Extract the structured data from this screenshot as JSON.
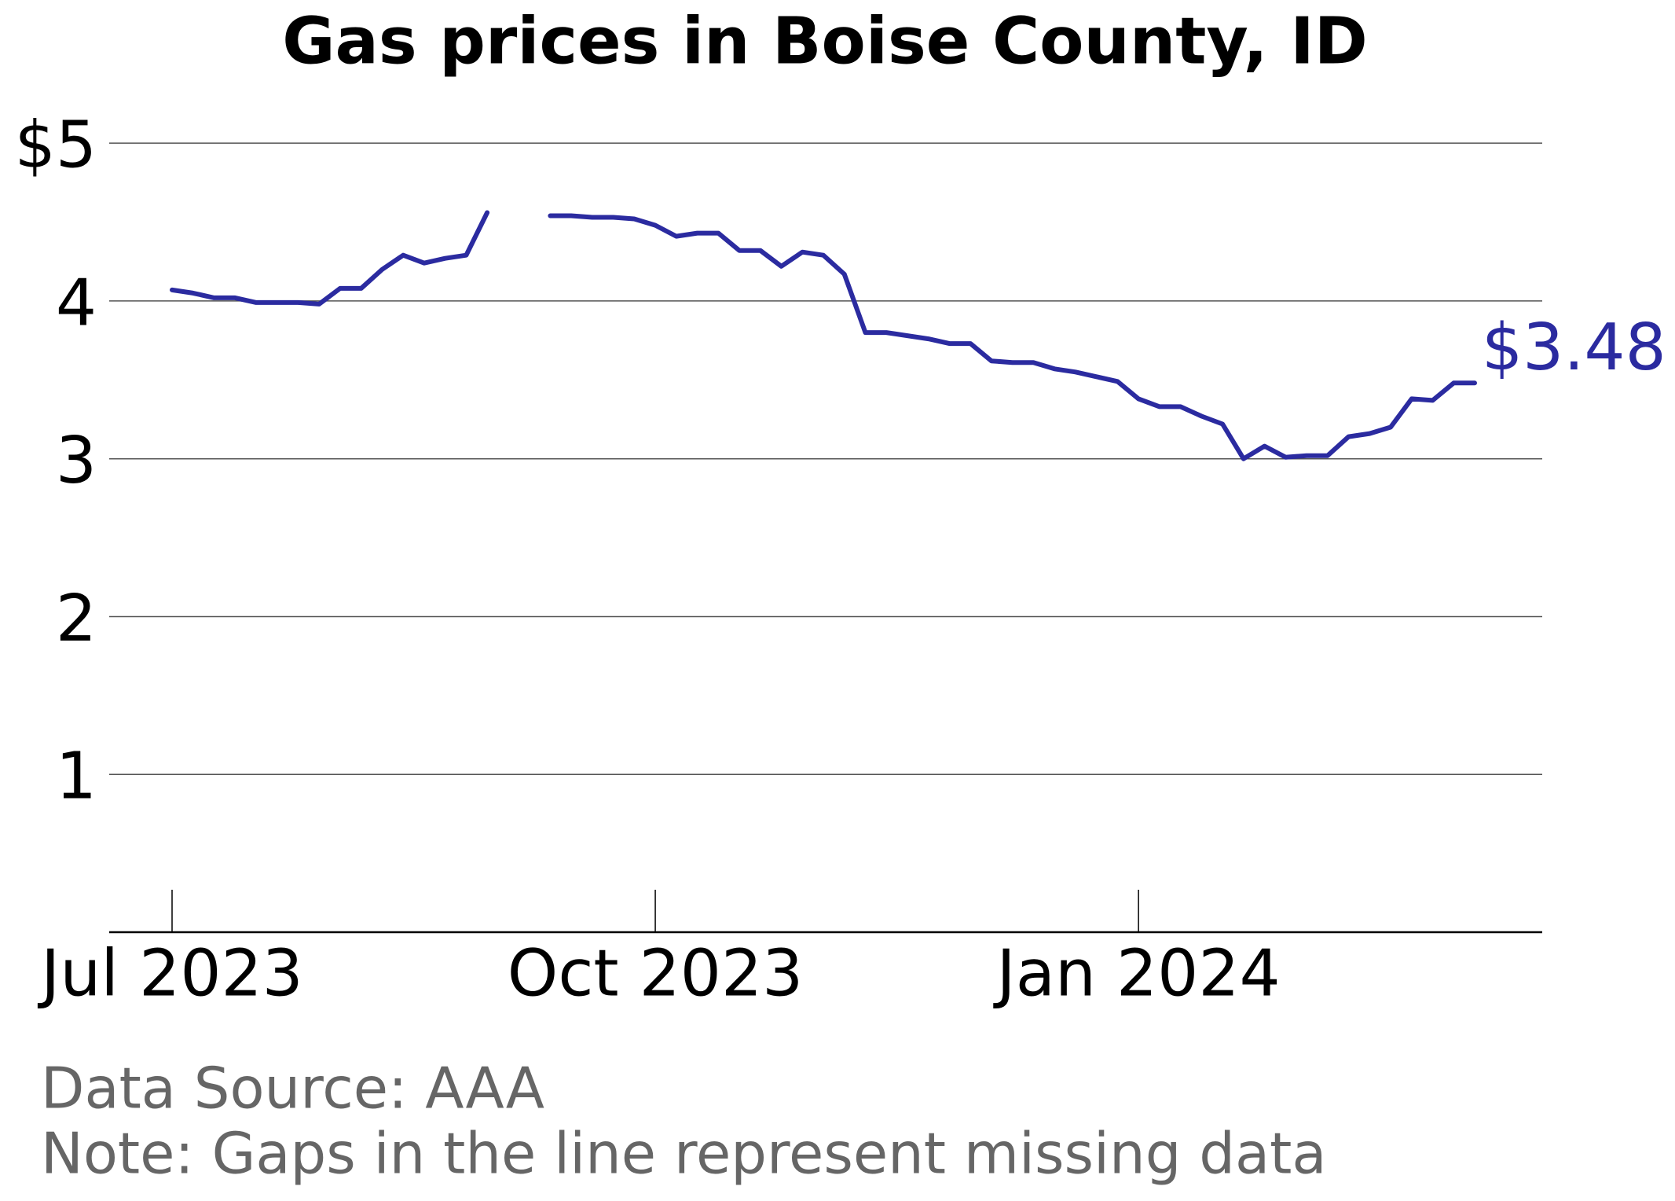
{
  "chart_data": {
    "type": "line",
    "title": "Gas prices in Boise County, ID",
    "categories": [
      "Jul 2023",
      null,
      null,
      null,
      null,
      null,
      null,
      null,
      null,
      null,
      null,
      null,
      null,
      null,
      null,
      null,
      null,
      null,
      null,
      null,
      null,
      null,
      null,
      "Oct 2023",
      null,
      null,
      null,
      null,
      null,
      null,
      null,
      null,
      null,
      null,
      null,
      null,
      null,
      null,
      null,
      null,
      null,
      null,
      null,
      null,
      null,
      null,
      "Jan 2024",
      null,
      null,
      null,
      null,
      null,
      null,
      null,
      null,
      null,
      null,
      null,
      null,
      null,
      null,
      null,
      null
    ],
    "values": [
      4.07,
      4.05,
      4.02,
      4.02,
      3.99,
      3.99,
      3.99,
      3.98,
      4.08,
      4.08,
      4.2,
      4.29,
      4.24,
      4.27,
      4.29,
      4.56,
      null,
      null,
      4.54,
      4.54,
      4.53,
      4.53,
      4.52,
      4.48,
      4.41,
      4.43,
      4.43,
      4.32,
      4.32,
      4.22,
      4.31,
      4.29,
      4.17,
      3.8,
      3.8,
      3.78,
      3.76,
      3.73,
      3.73,
      3.62,
      3.61,
      3.61,
      3.57,
      3.55,
      3.52,
      3.49,
      3.38,
      3.33,
      3.33,
      3.27,
      3.22,
      3.0,
      3.08,
      3.01,
      3.02,
      3.02,
      3.14,
      3.16,
      3.2,
      3.38,
      3.37,
      3.48,
      3.48
    ],
    "value_labels": [
      null,
      null,
      null,
      null,
      null,
      null,
      null,
      null,
      null,
      null,
      null,
      null,
      null,
      null,
      null,
      null,
      null,
      null,
      null,
      null,
      null,
      null,
      null,
      null,
      null,
      null,
      null,
      null,
      null,
      null,
      null,
      null,
      null,
      null,
      null,
      null,
      null,
      null,
      null,
      null,
      null,
      null,
      null,
      null,
      null,
      null,
      null,
      null,
      null,
      null,
      null,
      null,
      null,
      null,
      null,
      null,
      null,
      null,
      null,
      null,
      null,
      null,
      "$3.48"
    ],
    "color": "#2b2ba0",
    "ylim": [
      0,
      5.2
    ],
    "yticks": [
      1,
      2,
      3,
      4,
      {
        "value": 5,
        "label": "$5"
      }
    ],
    "grid": true,
    "source": "Data Source: AAA",
    "note": "Note: Gaps in the line represent missing data"
  }
}
